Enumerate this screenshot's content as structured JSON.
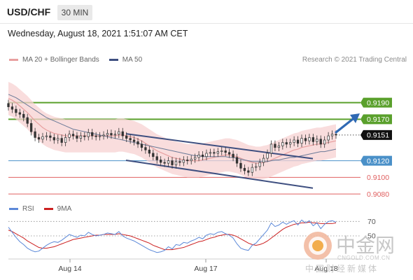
{
  "header": {
    "symbol": "USD/CHF",
    "timeframe": "30 MIN",
    "datetime": "Wednesday, August 18, 2021 1:51:07 AM CET"
  },
  "legend": {
    "ma20": "MA 20 + Bollinger Bands",
    "ma50": "MA 50",
    "copyright": "Research © 2021 Trading Central"
  },
  "rsi_legend": {
    "rsi": "RSI",
    "ma9": "9MA"
  },
  "watermark": {
    "cn": "中金网",
    "domain": "CNGOLD.COM.CN",
    "sub": "中国财经新媒体"
  },
  "colors": {
    "candle": "#333333",
    "ma20": "#e8a0a0",
    "band": "#f7d2d2",
    "ma50": "#6b7a98",
    "resistance": "#5aa02c",
    "pivot": "#4a90c8",
    "support": "#e06060",
    "channel": "#3e4f80",
    "arrow": "#2f69b3",
    "rsi": "#5b88d8",
    "rsi_ma": "#cc2020"
  },
  "chart_data": [
    {
      "type": "candlestick",
      "x_labels": [
        "Aug 14",
        "Aug 17",
        "Aug 18"
      ],
      "ylim": [
        0.9075,
        0.9215
      ],
      "levels": [
        {
          "label": "0.9190",
          "kind": "resistance"
        },
        {
          "label": "0.9170",
          "kind": "resistance"
        },
        {
          "label": "0.9151",
          "kind": "last"
        },
        {
          "label": "0.9120",
          "kind": "pivot"
        },
        {
          "label": "0.9100",
          "kind": "support"
        },
        {
          "label": "0.9080",
          "kind": "support"
        }
      ],
      "close": [
        0.9185,
        0.9182,
        0.9178,
        0.9176,
        0.9172,
        0.9165,
        0.9155,
        0.9148,
        0.9146,
        0.9149,
        0.915,
        0.9148,
        0.9145,
        0.9147,
        0.9142,
        0.9148,
        0.9152,
        0.915,
        0.9147,
        0.915,
        0.9149,
        0.9154,
        0.915,
        0.9149,
        0.915,
        0.9151,
        0.9153,
        0.9151,
        0.9152,
        0.9155,
        0.915,
        0.9147,
        0.9145,
        0.9143,
        0.914,
        0.9136,
        0.9133,
        0.9129,
        0.9125,
        0.9121,
        0.9118,
        0.9117,
        0.912,
        0.9115,
        0.9119,
        0.9118,
        0.9121,
        0.912,
        0.9122,
        0.9124,
        0.9127,
        0.9125,
        0.9129,
        0.913,
        0.9129,
        0.9131,
        0.9132,
        0.913,
        0.9128,
        0.9124,
        0.9117,
        0.9111,
        0.9108,
        0.9106,
        0.9112,
        0.9113,
        0.9118,
        0.9123,
        0.9129,
        0.914,
        0.9136,
        0.9138,
        0.9142,
        0.914,
        0.9142,
        0.9145,
        0.9141,
        0.9147,
        0.9144,
        0.9148,
        0.9143,
        0.9146,
        0.914,
        0.9145,
        0.915,
        0.9152,
        0.9151
      ],
      "ma20": [
        0.9195,
        0.9193,
        0.919,
        0.9186,
        0.9182,
        0.9178,
        0.9173,
        0.9168,
        0.9164,
        0.916,
        0.9157,
        0.9155,
        0.9153,
        0.9152,
        0.9151,
        0.915,
        0.915,
        0.915,
        0.915,
        0.915,
        0.915,
        0.915,
        0.915,
        0.915,
        0.915,
        0.915,
        0.915,
        0.915,
        0.915,
        0.9151,
        0.9151,
        0.915,
        0.9149,
        0.9148,
        0.9146,
        0.9144,
        0.9141,
        0.9138,
        0.9135,
        0.9132,
        0.913,
        0.9128,
        0.9126,
        0.9124,
        0.9123,
        0.9122,
        0.9121,
        0.912,
        0.912,
        0.912,
        0.912,
        0.9121,
        0.9122,
        0.9123,
        0.9124,
        0.9125,
        0.9126,
        0.9127,
        0.9127,
        0.9126,
        0.9125,
        0.9123,
        0.9121,
        0.9119,
        0.9118,
        0.9117,
        0.9117,
        0.9118,
        0.9119,
        0.9121,
        0.9123,
        0.9125,
        0.9127,
        0.9129,
        0.9131,
        0.9133,
        0.9134,
        0.9136,
        0.9137,
        0.9138,
        0.9139,
        0.914,
        0.914,
        0.9141,
        0.9142,
        0.9143,
        0.9144
      ],
      "ma50": [
        0.92,
        0.9198,
        0.9196,
        0.9193,
        0.919,
        0.9187,
        0.9184,
        0.9181,
        0.9178,
        0.9175,
        0.9172,
        0.917,
        0.9168,
        0.9166,
        0.9164,
        0.9162,
        0.916,
        0.9158,
        0.9157,
        0.9156,
        0.9155,
        0.9154,
        0.9153,
        0.9152,
        0.9151,
        0.915,
        0.9149,
        0.9148,
        0.9147,
        0.9146,
        0.9145,
        0.9144,
        0.9143,
        0.9142,
        0.9141,
        0.914,
        0.9139,
        0.9138,
        0.9137,
        0.9136,
        0.9135,
        0.9134,
        0.9133,
        0.9132,
        0.9131,
        0.913,
        0.9129,
        0.9128,
        0.9127,
        0.9126,
        0.9126,
        0.9125,
        0.9125,
        0.9125,
        0.9125,
        0.9125,
        0.9125,
        0.9125,
        0.9124,
        0.9124,
        0.9123,
        0.9122,
        0.9121,
        0.912,
        0.9119,
        0.9119,
        0.9119,
        0.9119,
        0.9119,
        0.912,
        0.9121,
        0.9121,
        0.9122,
        0.9123,
        0.9124,
        0.9124,
        0.9125,
        0.9126,
        0.9127,
        0.9128,
        0.9129,
        0.913,
        0.9131,
        0.9131,
        0.9132,
        0.9133,
        0.9134
      ]
    },
    {
      "type": "line",
      "title": "RSI",
      "ylim": [
        20,
        80
      ],
      "ticks": [
        70,
        50
      ],
      "rsi": [
        62,
        55,
        48,
        42,
        38,
        33,
        30,
        28,
        29,
        33,
        37,
        40,
        42,
        41,
        44,
        48,
        52,
        50,
        48,
        51,
        50,
        55,
        52,
        50,
        51,
        52,
        54,
        53,
        52,
        56,
        50,
        47,
        45,
        43,
        40,
        37,
        34,
        31,
        29,
        27,
        28,
        30,
        35,
        32,
        38,
        37,
        41,
        40,
        43,
        45,
        48,
        46,
        51,
        53,
        52,
        55,
        56,
        53,
        51,
        47,
        39,
        33,
        31,
        30,
        37,
        40,
        46,
        52,
        58,
        68,
        63,
        65,
        69,
        66,
        69,
        71,
        65,
        72,
        68,
        71,
        64,
        68,
        60,
        66,
        70,
        71,
        69
      ],
      "ma9": [
        58,
        56,
        53,
        50,
        47,
        43,
        40,
        37,
        34,
        33,
        33,
        34,
        35,
        37,
        39,
        41,
        43,
        45,
        46,
        47,
        48,
        49,
        50,
        51,
        51,
        52,
        52,
        52,
        52,
        53,
        52,
        51,
        50,
        48,
        46,
        44,
        42,
        40,
        37,
        35,
        33,
        31,
        31,
        31,
        32,
        33,
        34,
        36,
        38,
        40,
        42,
        43,
        45,
        47,
        48,
        50,
        51,
        52,
        52,
        51,
        49,
        46,
        43,
        40,
        38,
        37,
        38,
        40,
        43,
        47,
        51,
        55,
        59,
        62,
        64,
        66,
        67,
        68,
        68,
        69,
        68,
        68,
        67,
        67,
        67,
        67,
        68
      ]
    }
  ]
}
